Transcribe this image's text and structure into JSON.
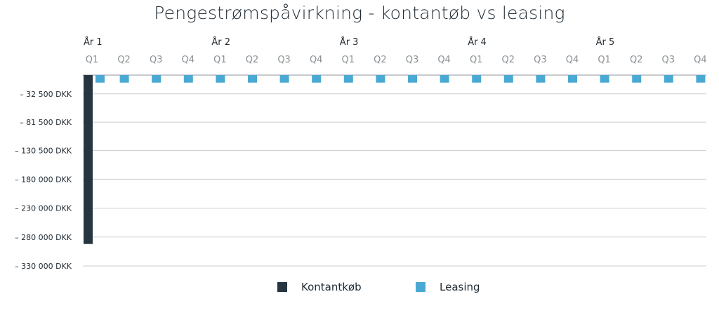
{
  "title": "Pengestrømspåvirkning - kontantøb vs leasing",
  "chart_data": {
    "type": "bar",
    "title": "Pengestrømspåvirkning - kontantøb vs leasing",
    "years": [
      "År 1",
      "År 2",
      "År 3",
      "År 4",
      "År 5"
    ],
    "categories": [
      "Q1",
      "Q2",
      "Q3",
      "Q4",
      "Q1",
      "Q2",
      "Q3",
      "Q4",
      "Q1",
      "Q2",
      "Q3",
      "Q4",
      "Q1",
      "Q2",
      "Q3",
      "Q4",
      "Q1",
      "Q2",
      "Q3",
      "Q4"
    ],
    "y_ticks": [
      -32500,
      -81500,
      -130500,
      -180000,
      -230000,
      -280000,
      -330000
    ],
    "y_tick_labels": [
      "– 32 500 DKK",
      "– 81 500 DKK",
      "– 130 500 DKK",
      "– 180 000 DKK",
      "– 230 000 DKK",
      "– 280 000 DKK",
      "– 330 000 DKK"
    ],
    "ylim": [
      -330000,
      0
    ],
    "grid": true,
    "legend_position": "bottom",
    "series": [
      {
        "name": "Kontantkøb",
        "color": "#263540",
        "values": [
          -292000,
          0,
          0,
          0,
          0,
          0,
          0,
          0,
          0,
          0,
          0,
          0,
          0,
          0,
          0,
          0,
          0,
          0,
          0,
          0
        ]
      },
      {
        "name": "Leasing",
        "color": "#4aa9d3",
        "values": [
          -13000,
          -13000,
          -13000,
          -13000,
          -13000,
          -13000,
          -13000,
          -13000,
          -13000,
          -13000,
          -13000,
          -13000,
          -13000,
          -13000,
          -13000,
          -13000,
          -13000,
          -13000,
          -13000,
          -13000
        ]
      }
    ]
  }
}
